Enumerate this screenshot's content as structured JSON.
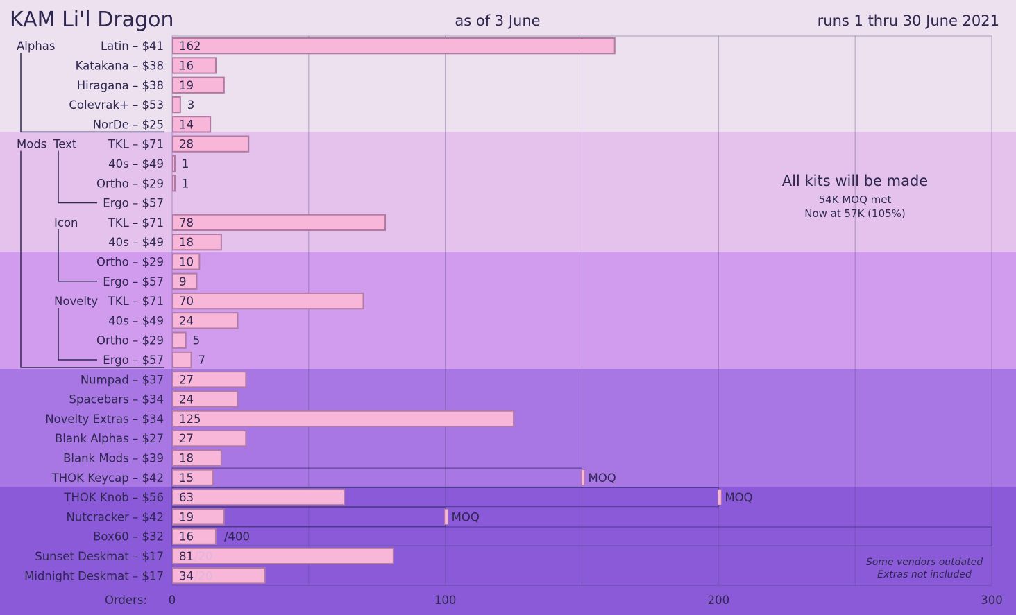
{
  "header": {
    "title": "KAM Li'l Dragon",
    "as_of": "as of 3 June",
    "runs": "runs 1 thru 30 June 2021"
  },
  "colors": {
    "bar_fill": "#f8b6d8",
    "bar_border": "#b07aa5",
    "band_alphas": "#ede0ef",
    "band_mods_text": "#e4c2ec",
    "band_mods_rest": "#d19ced",
    "band_extras": "#a877e3",
    "band_bottom": "#8a5ad8",
    "text": "#2e2850"
  },
  "annotations": {
    "all_kits": "All kits will be made",
    "moq_met": "54K MOQ met",
    "now_at": "Now at 57K (105%)",
    "vendors_note": "Some vendors outdated",
    "extras_note": "Extras not included"
  },
  "chart_data": {
    "type": "bar",
    "orientation": "horizontal",
    "title": "KAM Li'l Dragon",
    "xlabel": "Orders:",
    "xlim": [
      0,
      300
    ],
    "xticks": [
      0,
      100,
      200,
      300
    ],
    "grid": true,
    "groups": [
      {
        "label": "Alphas"
      },
      {
        "label": "Mods"
      },
      {
        "label": "Text"
      },
      {
        "label": "Icon"
      },
      {
        "label": "Novelty"
      }
    ],
    "categories": [
      {
        "label": "Latin – $41",
        "value": 162
      },
      {
        "label": "Katakana – $38",
        "value": 16
      },
      {
        "label": "Hiragana – $38",
        "value": 19
      },
      {
        "label": "Colevrak+ – $53",
        "value": 3
      },
      {
        "label": "NorDe – $25",
        "value": 14
      },
      {
        "label": "TKL – $71",
        "value": 28
      },
      {
        "label": "40s – $49",
        "value": 1
      },
      {
        "label": "Ortho – $29",
        "value": 1
      },
      {
        "label": "Ergo – $57",
        "value": 0
      },
      {
        "label": "TKL – $71",
        "value": 78
      },
      {
        "label": "40s – $49",
        "value": 18
      },
      {
        "label": "Ortho – $29",
        "value": 10
      },
      {
        "label": "Ergo – $57",
        "value": 9
      },
      {
        "label": "TKL – $71",
        "value": 70
      },
      {
        "label": "40s – $49",
        "value": 24
      },
      {
        "label": "Ortho – $29",
        "value": 5
      },
      {
        "label": "Ergo – $57",
        "value": 7
      },
      {
        "label": "Numpad – $37",
        "value": 27
      },
      {
        "label": "Spacebars – $34",
        "value": 24
      },
      {
        "label": "Novelty Extras – $34",
        "value": 125
      },
      {
        "label": "Blank Alphas – $27",
        "value": 27
      },
      {
        "label": "Blank Mods – $39",
        "value": 18
      },
      {
        "label": "THOK Keycap – $42",
        "value": 15,
        "moq": 150,
        "moq_label": "MOQ"
      },
      {
        "label": "THOK Knob – $56",
        "value": 63,
        "moq": 200,
        "moq_label": "MOQ"
      },
      {
        "label": "Nutcracker – $42",
        "value": 19,
        "moq": 100,
        "moq_label": "MOQ"
      },
      {
        "label": "Box60 – $32",
        "value": 16,
        "cap": 300,
        "cap_label": "/400"
      },
      {
        "label": "Sunset Deskmat – $17",
        "value": 81,
        "suffix": "/20"
      },
      {
        "label": "Midnight Deskmat – $17",
        "value": 34,
        "suffix": "/20"
      }
    ]
  }
}
